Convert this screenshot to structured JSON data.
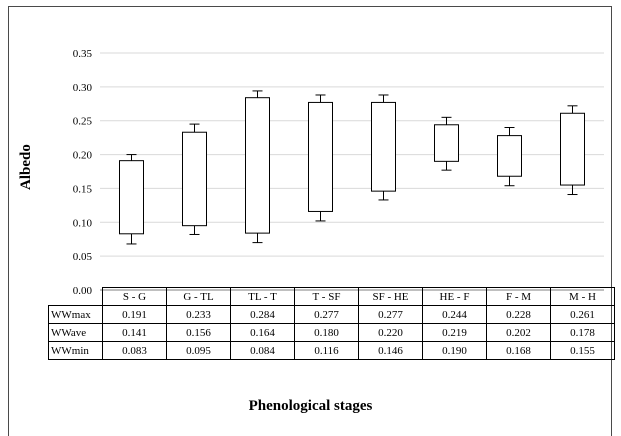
{
  "chart_data": {
    "type": "box",
    "ylabel": "Albedo",
    "xlabel": "Phenological stages",
    "ylim": [
      0,
      0.35
    ],
    "yticks": [
      "0.00",
      "0.05",
      "0.10",
      "0.15",
      "0.20",
      "0.25",
      "0.30",
      "0.35"
    ],
    "grid": true,
    "categories": [
      "S - G",
      "G - TL",
      "TL - T",
      "T - SF",
      "SF - HE",
      "HE - F",
      "F - M",
      "M - H"
    ],
    "box_top": [
      0.191,
      0.233,
      0.284,
      0.277,
      0.277,
      0.244,
      0.228,
      0.261
    ],
    "box_bottom": [
      0.083,
      0.095,
      0.084,
      0.116,
      0.146,
      0.19,
      0.168,
      0.155
    ],
    "whisker_top": [
      0.2,
      0.245,
      0.294,
      0.288,
      0.288,
      0.255,
      0.24,
      0.272
    ],
    "whisker_bottom": [
      0.068,
      0.082,
      0.07,
      0.102,
      0.133,
      0.177,
      0.154,
      0.141
    ],
    "table": {
      "rows": [
        {
          "label": "WWmax",
          "values": [
            "0.191",
            "0.233",
            "0.284",
            "0.277",
            "0.277",
            "0.244",
            "0.228",
            "0.261"
          ]
        },
        {
          "label": "WWave",
          "values": [
            "0.141",
            "0.156",
            "0.164",
            "0.180",
            "0.220",
            "0.219",
            "0.202",
            "0.178"
          ]
        },
        {
          "label": "WWmin",
          "values": [
            "0.083",
            "0.095",
            "0.084",
            "0.116",
            "0.146",
            "0.190",
            "0.168",
            "0.155"
          ]
        }
      ]
    }
  }
}
